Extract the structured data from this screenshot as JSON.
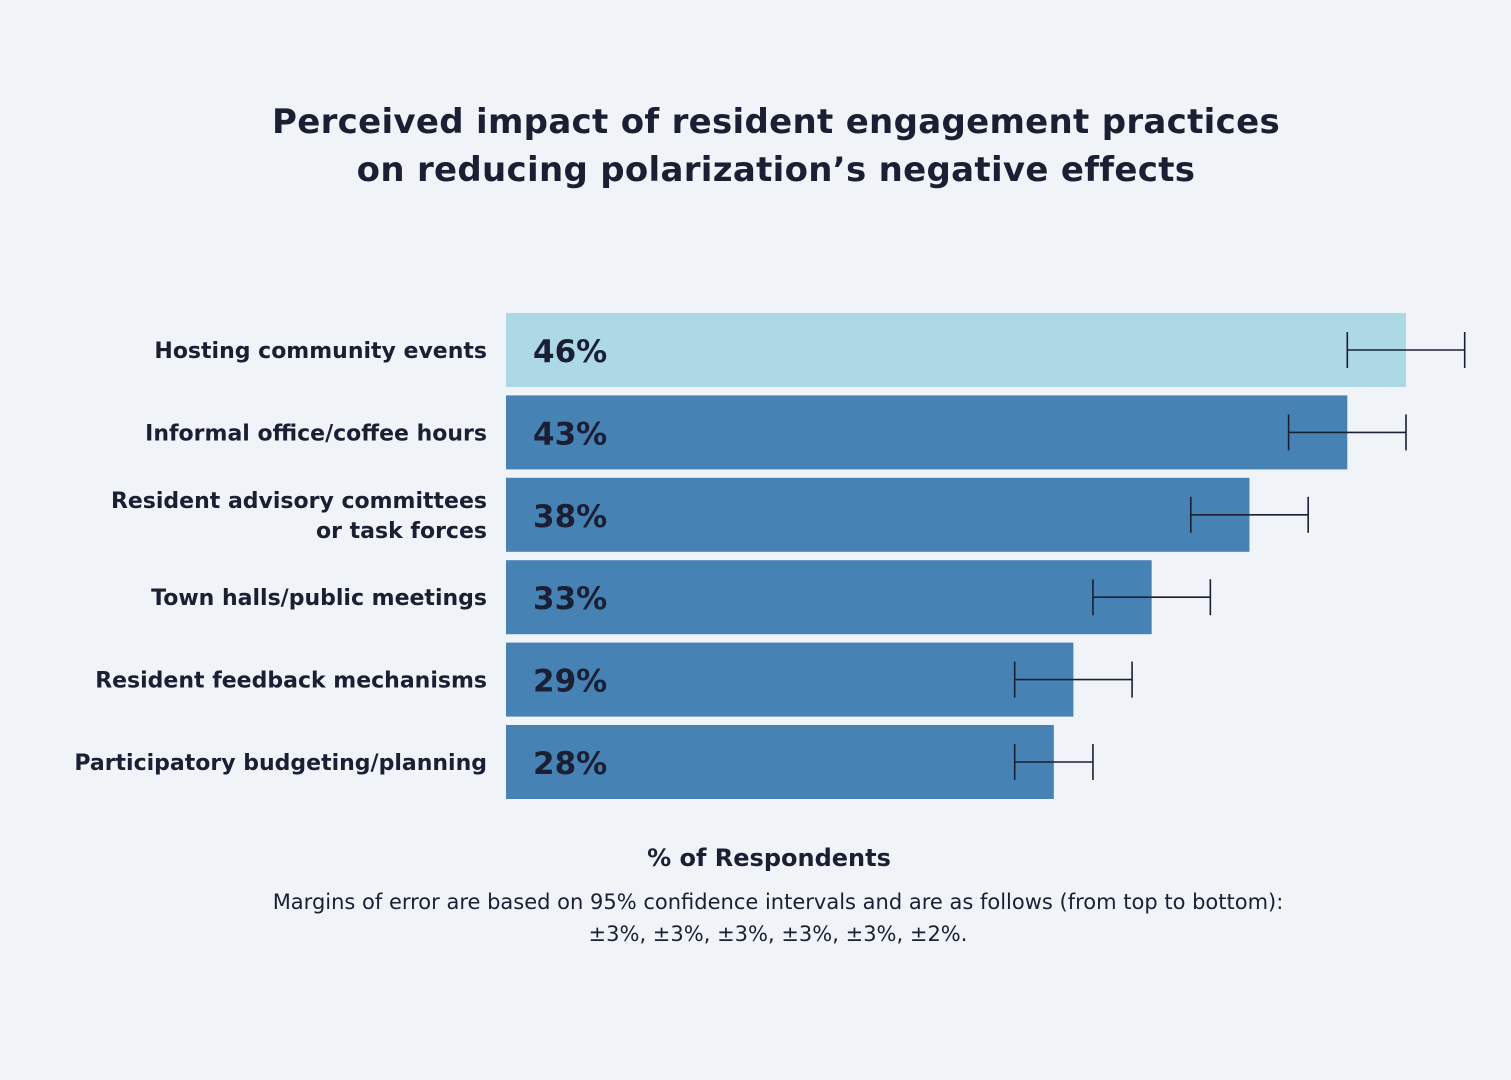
{
  "chart_data": {
    "type": "bar",
    "orientation": "horizontal",
    "title_lines": [
      "Perceived impact of resident engagement practices",
      "on reducing polarization’s negative effects"
    ],
    "categories": [
      [
        "Hosting community events"
      ],
      [
        "Informal office/coffee hours"
      ],
      [
        "Resident advisory committees",
        "or task forces"
      ],
      [
        "Town halls/public meetings"
      ],
      [
        "Resident feedback mechanisms"
      ],
      [
        "Participatory budgeting/planning"
      ]
    ],
    "values": [
      46,
      43,
      38,
      33,
      29,
      28
    ],
    "value_labels": [
      "46%",
      "43%",
      "38%",
      "33%",
      "29%",
      "28%"
    ],
    "error_margins": [
      3,
      3,
      3,
      3,
      3,
      2
    ],
    "xlim": [
      0,
      46
    ],
    "xlabel": "% of Respondents",
    "highlight_index": 0,
    "colors": {
      "highlight": "#add8e6",
      "bar": "#4682b4",
      "error_bar": "#1a1f33",
      "text": "#1a1f33",
      "background": "#f0f3f8"
    },
    "footnote_lines": [
      "Margins of error are based on 95% confidence intervals and are as follows (from top to bottom):",
      "±3%, ±3%, ±3%, ±3%, ±3%, ±2%."
    ]
  }
}
